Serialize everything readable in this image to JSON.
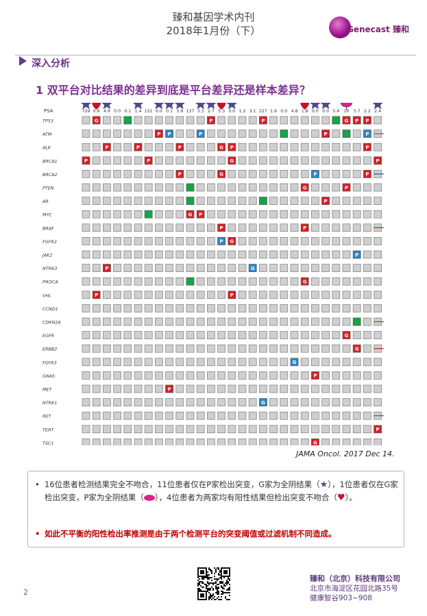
{
  "header": {
    "line1": "臻和基因学术内刊",
    "line2": "2018年1月份（下）",
    "logo_text": "Genecast 臻和"
  },
  "section": {
    "title": "深入分析"
  },
  "question": {
    "title": "1 双平台对比结果的差异到底是平台差异还是样本差异？"
  },
  "figure": {
    "psa_label": "PSA",
    "psa_values": [
      "729",
      "0.6",
      "4.9",
      "0.0",
      "0.1",
      "1.4",
      "151",
      "0.0",
      "0.1",
      "3.9",
      "137",
      "3.3",
      "2.7",
      "5.3",
      "0.0",
      "1.2",
      "3.1",
      "227",
      "1.6",
      "0.0",
      "4.8",
      "1.8",
      "0.0",
      "0.0",
      "5.4",
      "10",
      "5.7",
      "2.2",
      "2.4",
      "0.0",
      "15"
    ],
    "column_markers": [
      "star",
      "heart",
      "star",
      "",
      "",
      "star",
      "",
      "star",
      "star",
      "star",
      "",
      "star",
      "star",
      "heart",
      "star",
      "",
      "",
      "",
      "",
      "",
      "",
      "heart",
      "star",
      "star",
      "",
      "lip",
      "",
      "",
      "star",
      "",
      ""
    ],
    "genes": [
      "TP53",
      "ATM",
      "ALK",
      "BRCA1",
      "BRCA2",
      "PTEN",
      "AR",
      "MYC",
      "BRAF",
      "FGFR2",
      "JAK2",
      "NTRK3",
      "PIK3CA",
      "VHL",
      "CCND1",
      "CDKN2A",
      "EGFR",
      "ERBB2",
      "FGFR3",
      "GNAS",
      "MET",
      "NTRK1",
      "RET",
      "TERT",
      "TSC1"
    ],
    "cells": [
      {
        "r": 0,
        "c": 1,
        "t": "G"
      },
      {
        "r": 0,
        "c": 4,
        "t": "B"
      },
      {
        "r": 0,
        "c": 12,
        "t": "P"
      },
      {
        "r": 0,
        "c": 17,
        "t": "P"
      },
      {
        "r": 0,
        "c": 24,
        "t": "B"
      },
      {
        "r": 0,
        "c": 25,
        "t": "G"
      },
      {
        "r": 0,
        "c": 26,
        "t": "P"
      },
      {
        "r": 0,
        "c": 27,
        "t": "P"
      },
      {
        "r": 1,
        "c": 7,
        "t": "P"
      },
      {
        "r": 1,
        "c": 8,
        "t": "T"
      },
      {
        "r": 1,
        "c": 11,
        "t": "T"
      },
      {
        "r": 1,
        "c": 19,
        "t": "B"
      },
      {
        "r": 1,
        "c": 23,
        "t": "P"
      },
      {
        "r": 1,
        "c": 25,
        "t": "B"
      },
      {
        "r": 1,
        "c": 27,
        "t": "T"
      },
      {
        "r": 2,
        "c": 2,
        "t": "P"
      },
      {
        "r": 2,
        "c": 5,
        "t": "P"
      },
      {
        "r": 2,
        "c": 9,
        "t": "P"
      },
      {
        "r": 2,
        "c": 13,
        "t": "G"
      },
      {
        "r": 2,
        "c": 14,
        "t": "P"
      },
      {
        "r": 2,
        "c": 27,
        "t": "P"
      },
      {
        "r": 3,
        "c": 0,
        "t": "P"
      },
      {
        "r": 3,
        "c": 6,
        "t": "P"
      },
      {
        "r": 3,
        "c": 14,
        "t": "G"
      },
      {
        "r": 3,
        "c": 28,
        "t": "P"
      },
      {
        "r": 4,
        "c": 9,
        "t": "P"
      },
      {
        "r": 4,
        "c": 13,
        "t": "G"
      },
      {
        "r": 4,
        "c": 22,
        "t": "T"
      },
      {
        "r": 4,
        "c": 27,
        "t": "P"
      },
      {
        "r": 5,
        "c": 10,
        "t": "B"
      },
      {
        "r": 5,
        "c": 21,
        "t": "G"
      },
      {
        "r": 5,
        "c": 25,
        "t": "P"
      },
      {
        "r": 6,
        "c": 10,
        "t": "B"
      },
      {
        "r": 6,
        "c": 17,
        "t": "B"
      },
      {
        "r": 6,
        "c": 23,
        "t": "P"
      },
      {
        "r": 7,
        "c": 6,
        "t": "B"
      },
      {
        "r": 7,
        "c": 10,
        "t": "G"
      },
      {
        "r": 7,
        "c": 11,
        "t": "P"
      },
      {
        "r": 8,
        "c": 13,
        "t": "P"
      },
      {
        "r": 8,
        "c": 21,
        "t": "P"
      },
      {
        "r": 9,
        "c": 13,
        "t": "T"
      },
      {
        "r": 9,
        "c": 14,
        "t": "G"
      },
      {
        "r": 10,
        "c": 26,
        "t": "T"
      },
      {
        "r": 10,
        "c": 29,
        "t": "B"
      },
      {
        "r": 11,
        "c": 2,
        "t": "P"
      },
      {
        "r": 11,
        "c": 16,
        "t": "T"
      },
      {
        "r": 12,
        "c": 10,
        "t": "B"
      },
      {
        "r": 12,
        "c": 21,
        "t": "G"
      },
      {
        "r": 13,
        "c": 1,
        "t": "P"
      },
      {
        "r": 13,
        "c": 14,
        "t": "P"
      },
      {
        "r": 15,
        "c": 26,
        "t": "B"
      },
      {
        "r": 16,
        "c": 25,
        "t": "G"
      },
      {
        "r": 17,
        "c": 26,
        "t": "G"
      },
      {
        "r": 18,
        "c": 20,
        "t": "T"
      },
      {
        "r": 19,
        "c": 22,
        "t": "P"
      },
      {
        "r": 20,
        "c": 8,
        "t": "P"
      },
      {
        "r": 21,
        "c": 17,
        "t": "T"
      },
      {
        "r": 22,
        "c": 30,
        "t": "T"
      },
      {
        "r": 23,
        "c": 28,
        "t": "P"
      },
      {
        "r": 24,
        "c": 22,
        "t": "G"
      }
    ],
    "callouts": [
      {
        "text": [
          "没有变",
          "异报道"
        ],
        "row": 1,
        "color": "#6b6b6b"
      },
      {
        "text": [
          "仅G家",
          "panel覆",
          "盖"
        ],
        "row": 4,
        "color": "#1f5f99"
      },
      {
        "text": [
          "相同变",
          "异仅P",
          "家检出"
        ],
        "row": 8,
        "color": "#d01010"
      },
      {
        "text": [
          "2家变",
          "异相同"
        ],
        "row": 15,
        "color": "#1a8a3a"
      },
      {
        "text": [
          "相同变",
          "异仅G",
          "家检出"
        ],
        "row": 17,
        "color": "#d01010"
      },
      {
        "text": [
          "仅P家",
          "panel",
          "覆盖"
        ],
        "row": 22,
        "color": "#1f5f99"
      }
    ],
    "citation": "JAMA Oncol. 2017 Dec 14."
  },
  "notes": {
    "bullet": "•",
    "n1a": "16位患者检测结果完全不吻合，11位患者仅在P家检出突变，G家为全阴结果（",
    "n1b": "），1位患者仅在G家检出突变，P家为全阴结果（",
    "n1c": "），4位患者为两家均有阳性结果但检出突变不吻合（",
    "n1d": "）。",
    "n2": "如此不平衡的阳性检出率推测是由于两个检测平台的突变阈值或过滤机制不同造成。"
  },
  "footer": {
    "page": "2",
    "company": "臻和（北京）科技有限公司",
    "address": "北京市海淀区花园北路35号",
    "building": "健康智谷903~908"
  }
}
